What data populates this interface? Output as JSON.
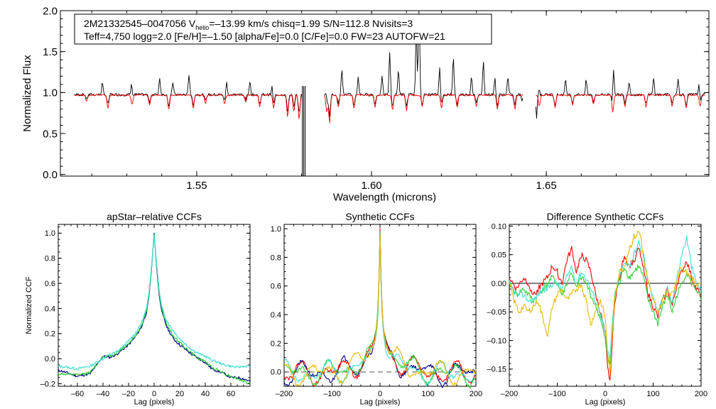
{
  "chart_data": [
    {
      "id": "spectrum",
      "type": "line",
      "title": "",
      "xlabel": "Wavelength (microns)",
      "ylabel": "Normalized Flux",
      "xlim": [
        1.511,
        1.6965
      ],
      "ylim": [
        -0.02,
        2.0
      ],
      "xticks": [
        1.55,
        1.6,
        1.65
      ],
      "xtick_labels": [
        "1.55",
        "1.60",
        "1.65"
      ],
      "yticks": [
        0.0,
        0.5,
        1.0,
        1.5,
        2.0
      ],
      "ytick_labels": [
        "0.0",
        "0.5",
        "1.0",
        "1.5",
        "2.0"
      ],
      "info_line1_parts": [
        "2M21332545–0047056  V",
        "helio",
        "=–13.99 km/s  chisq=1.99  S/N=112.8  Nvisits=3"
      ],
      "info_line2": "Teff=4,750 logg=2.0 [Fe/H]=–1.50 [alpha/Fe]=0.0 [C/Fe]=0.0 FW=23 AUTOFW=21",
      "chips": [
        [
          1.515,
          1.5803
        ],
        [
          1.5865,
          1.6433
        ],
        [
          1.647,
          1.6955
        ]
      ],
      "emission_lines": [
        [
          1.523,
          1.14
        ],
        [
          1.5314,
          1.2
        ],
        [
          1.5394,
          1.21
        ],
        [
          1.5432,
          1.15
        ],
        [
          1.5478,
          1.25
        ],
        [
          1.5585,
          1.16
        ],
        [
          1.5652,
          1.17
        ],
        [
          1.5716,
          1.12
        ],
        [
          1.5871,
          1.13
        ],
        [
          1.5915,
          1.32
        ],
        [
          1.5962,
          1.22
        ],
        [
          1.603,
          1.22
        ],
        [
          1.6052,
          1.52
        ],
        [
          1.6077,
          1.3
        ],
        [
          1.6128,
          1.79
        ],
        [
          1.6136,
          2.05
        ],
        [
          1.6195,
          1.36
        ],
        [
          1.6234,
          1.46
        ],
        [
          1.6286,
          1.23
        ],
        [
          1.632,
          1.42
        ],
        [
          1.6353,
          1.2
        ],
        [
          1.639,
          1.21
        ],
        [
          1.648,
          1.17
        ],
        [
          1.6555,
          1.18
        ],
        [
          1.6614,
          1.18
        ],
        [
          1.6692,
          1.42
        ],
        [
          1.6737,
          1.17
        ],
        [
          1.6807,
          1.2
        ],
        [
          1.6877,
          1.19
        ],
        [
          1.6937,
          1.17
        ]
      ],
      "absorption_lines": [
        [
          1.5185,
          0.93
        ],
        [
          1.5246,
          0.85
        ],
        [
          1.5315,
          0.9
        ],
        [
          1.5365,
          0.88
        ],
        [
          1.542,
          0.83
        ],
        [
          1.549,
          0.84
        ],
        [
          1.5525,
          0.9
        ],
        [
          1.558,
          0.9
        ],
        [
          1.564,
          0.92
        ],
        [
          1.568,
          0.86
        ],
        [
          1.572,
          0.84
        ],
        [
          1.576,
          0.74
        ],
        [
          1.5778,
          0.8
        ],
        [
          1.5793,
          0.72
        ],
        [
          1.5872,
          0.8
        ],
        [
          1.588,
          0.68
        ],
        [
          1.5905,
          0.86
        ],
        [
          1.595,
          0.84
        ],
        [
          1.601,
          0.86
        ],
        [
          1.606,
          0.83
        ],
        [
          1.61,
          0.82
        ],
        [
          1.6145,
          0.86
        ],
        [
          1.62,
          0.84
        ],
        [
          1.6245,
          0.85
        ],
        [
          1.63,
          0.86
        ],
        [
          1.636,
          0.83
        ],
        [
          1.641,
          0.84
        ],
        [
          1.648,
          0.87
        ],
        [
          1.6525,
          0.85
        ],
        [
          1.6575,
          0.88
        ],
        [
          1.6635,
          0.89
        ],
        [
          1.669,
          0.8
        ],
        [
          1.6725,
          0.87
        ],
        [
          1.6785,
          0.86
        ],
        [
          1.686,
          0.87
        ],
        [
          1.69,
          0.84
        ],
        [
          1.694,
          0.87
        ]
      ],
      "artifacts": [
        [
          1.6472,
          0.72
        ],
        [
          1.5855,
          0.9
        ],
        [
          1.643,
          0.93
        ]
      ],
      "gap_spikes": [
        1.5802,
        1.5806,
        1.581
      ],
      "series": [
        {
          "name": "observed",
          "color": "#000000"
        },
        {
          "name": "model",
          "color": "#ff0000"
        }
      ]
    },
    {
      "id": "apstar-ccf",
      "type": "line",
      "title": "apStar–relative CCFs",
      "xlabel": "Lag (pixels)",
      "ylabel": "Normalized CCF",
      "xlim": [
        -75,
        75
      ],
      "ylim": [
        -0.22,
        1.07
      ],
      "xticks": [
        -60,
        -40,
        -20,
        0,
        20,
        40,
        60
      ],
      "xtick_labels": [
        "–60",
        "–40",
        "–20",
        "0",
        "20",
        "40",
        "60"
      ],
      "yticks": [
        -0.2,
        0.0,
        0.2,
        0.4,
        0.6,
        0.8,
        1.0
      ],
      "ytick_labels": [
        "–0.2",
        "0.0",
        "0.2",
        "0.4",
        "0.6",
        "0.8",
        "1.0"
      ],
      "series": [
        {
          "name": "visit-1",
          "color": "#00008b",
          "x": [
            -75,
            -60,
            -50,
            -45,
            -40,
            -35,
            -30,
            -25,
            -20,
            -15,
            -10,
            -6,
            -4,
            -2,
            0,
            2,
            4,
            6,
            10,
            15,
            20,
            25,
            30,
            35,
            40,
            45,
            50,
            55,
            60,
            65,
            70,
            75
          ],
          "y": [
            -0.09,
            -0.14,
            -0.12,
            -0.05,
            0.02,
            0.01,
            0.03,
            0.07,
            0.11,
            0.17,
            0.25,
            0.37,
            0.5,
            0.72,
            1.0,
            0.72,
            0.5,
            0.37,
            0.25,
            0.16,
            0.11,
            0.07,
            0.03,
            0.0,
            -0.03,
            -0.08,
            -0.1,
            -0.12,
            -0.15,
            -0.15,
            -0.16,
            -0.18
          ]
        },
        {
          "name": "visit-2",
          "color": "#32cd32",
          "x": [
            -75,
            -60,
            -50,
            -45,
            -40,
            -35,
            -30,
            -25,
            -20,
            -15,
            -10,
            -6,
            -4,
            -2,
            0,
            2,
            4,
            6,
            10,
            15,
            20,
            25,
            30,
            35,
            40,
            45,
            50,
            55,
            60,
            65,
            70,
            75
          ],
          "y": [
            -0.12,
            -0.13,
            -0.11,
            -0.05,
            0.02,
            0.02,
            0.04,
            0.08,
            0.12,
            0.18,
            0.26,
            0.38,
            0.51,
            0.73,
            0.99,
            0.74,
            0.52,
            0.39,
            0.27,
            0.18,
            0.13,
            0.08,
            0.04,
            0.0,
            -0.02,
            -0.07,
            -0.09,
            -0.12,
            -0.14,
            -0.16,
            -0.18,
            -0.2
          ]
        },
        {
          "name": "visit-3",
          "color": "#40e0d0",
          "x": [
            -75,
            -60,
            -50,
            -45,
            -40,
            -35,
            -30,
            -25,
            -20,
            -15,
            -10,
            -6,
            -4,
            -2,
            0,
            2,
            4,
            6,
            10,
            15,
            20,
            25,
            30,
            35,
            40,
            45,
            50,
            55,
            60,
            65,
            70,
            75
          ],
          "y": [
            -0.06,
            -0.08,
            -0.06,
            -0.03,
            0.0,
            0.03,
            0.05,
            0.09,
            0.14,
            0.2,
            0.28,
            0.4,
            0.53,
            0.74,
            0.98,
            0.75,
            0.54,
            0.41,
            0.3,
            0.22,
            0.16,
            0.11,
            0.07,
            0.04,
            0.02,
            -0.01,
            -0.03,
            -0.05,
            -0.06,
            -0.07,
            -0.06,
            -0.06
          ]
        }
      ]
    },
    {
      "id": "synthetic-ccf",
      "type": "line",
      "title": "Synthetic CCFs",
      "xlabel": "Lag (pixels)",
      "ylabel": "",
      "xlim": [
        -200,
        200
      ],
      "ylim": [
        -0.1,
        1.03
      ],
      "xticks": [
        -200,
        -100,
        0,
        100,
        200
      ],
      "xtick_labels": [
        "–200",
        "–100",
        "0",
        "100",
        "200"
      ],
      "yticks": [
        0.0,
        0.2,
        0.4,
        0.6,
        0.8,
        1.0
      ],
      "ytick_labels": [
        "0.0",
        "0.2",
        "0.4",
        "0.6",
        "0.8",
        "1.0"
      ],
      "zero_line_dashed": true,
      "series": [
        {
          "name": "model-blue",
          "color": "#00008b",
          "peak": 0.99,
          "width": 0.0,
          "seed": 1
        },
        {
          "name": "model-red",
          "color": "#ff0000",
          "peak": 1.0,
          "width": 1.0,
          "seed": 2
        },
        {
          "name": "model-green",
          "color": "#32cd32",
          "peak": 0.98,
          "width": 1.5,
          "seed": 3
        },
        {
          "name": "model-cyan",
          "color": "#40e0d0",
          "peak": 0.97,
          "width": -1.0,
          "seed": 4
        },
        {
          "name": "model-gold",
          "color": "#e6b800",
          "peak": 0.96,
          "width": 2.0,
          "seed": 5
        }
      ]
    },
    {
      "id": "difference-ccf",
      "type": "line",
      "title": "Difference Synthetic CCFs",
      "xlabel": "Lag (pixels)",
      "ylabel": "",
      "xlim": [
        -200,
        200
      ],
      "ylim": [
        -0.18,
        0.103
      ],
      "xticks": [
        -200,
        -100,
        0,
        100,
        200
      ],
      "xtick_labels": [
        "–200",
        "–100",
        "0",
        "100",
        "200"
      ],
      "yticks": [
        -0.15,
        -0.1,
        -0.05,
        0.0,
        0.05,
        0.1
      ],
      "ytick_labels": [
        "–0.15",
        "–0.10",
        "–0.05",
        "0.00",
        "0.05",
        "0.10"
      ],
      "zero_line_solid": true,
      "series": [
        {
          "name": "diff-red",
          "color": "#ff0000",
          "x": [
            -200,
            -185,
            -170,
            -160,
            -150,
            -140,
            -130,
            -120,
            -110,
            -100,
            -90,
            -80,
            -70,
            -60,
            -50,
            -40,
            -30,
            -20,
            -10,
            0,
            5,
            10,
            15,
            20,
            30,
            40,
            50,
            60,
            70,
            80,
            90,
            100,
            110,
            120,
            130,
            140,
            150,
            160,
            170,
            180,
            190,
            200
          ],
          "y": [
            0.01,
            -0.01,
            0.01,
            0.0,
            -0.02,
            -0.01,
            0.0,
            0.01,
            0.03,
            0.02,
            0.0,
            0.04,
            0.06,
            0.02,
            0.05,
            0.04,
            0.02,
            -0.02,
            -0.05,
            -0.09,
            -0.15,
            -0.17,
            -0.1,
            -0.03,
            0.01,
            0.05,
            0.03,
            0.04,
            0.06,
            0.03,
            -0.02,
            -0.04,
            -0.06,
            -0.03,
            -0.01,
            -0.04,
            0.0,
            0.02,
            0.04,
            0.01,
            -0.01,
            -0.02
          ]
        },
        {
          "name": "diff-green",
          "color": "#32cd32",
          "x": [
            -200,
            -185,
            -170,
            -160,
            -150,
            -140,
            -130,
            -120,
            -110,
            -100,
            -90,
            -80,
            -70,
            -60,
            -50,
            -40,
            -30,
            -20,
            -10,
            0,
            5,
            10,
            15,
            20,
            30,
            40,
            50,
            60,
            70,
            80,
            90,
            100,
            110,
            120,
            130,
            140,
            150,
            160,
            170,
            180,
            190,
            200
          ],
          "y": [
            0.0,
            -0.02,
            -0.01,
            -0.02,
            -0.03,
            -0.02,
            -0.01,
            0.0,
            0.01,
            0.0,
            -0.02,
            0.0,
            0.02,
            -0.01,
            0.01,
            0.0,
            -0.02,
            -0.04,
            -0.06,
            -0.1,
            -0.13,
            -0.14,
            -0.08,
            -0.02,
            0.0,
            0.03,
            0.01,
            0.02,
            0.03,
            0.01,
            -0.03,
            -0.05,
            -0.07,
            -0.04,
            -0.02,
            -0.05,
            -0.02,
            0.0,
            0.02,
            0.0,
            -0.01,
            -0.03
          ]
        },
        {
          "name": "diff-cyan",
          "color": "#40e0d0",
          "x": [
            -200,
            -185,
            -170,
            -160,
            -150,
            -140,
            -130,
            -120,
            -110,
            -100,
            -90,
            -80,
            -70,
            -60,
            -50,
            -40,
            -30,
            -20,
            -10,
            0,
            5,
            10,
            15,
            20,
            30,
            40,
            50,
            60,
            70,
            80,
            90,
            100,
            110,
            120,
            130,
            140,
            150,
            160,
            170,
            180,
            190,
            200
          ],
          "y": [
            0.0,
            -0.02,
            -0.02,
            -0.03,
            -0.03,
            -0.02,
            -0.01,
            -0.01,
            0.0,
            0.0,
            -0.01,
            0.01,
            0.03,
            0.0,
            0.02,
            0.01,
            -0.01,
            -0.03,
            -0.05,
            -0.09,
            -0.12,
            -0.13,
            -0.07,
            -0.02,
            0.01,
            0.04,
            0.03,
            0.05,
            0.07,
            0.05,
            0.0,
            -0.02,
            -0.05,
            -0.03,
            -0.01,
            -0.03,
            0.01,
            0.05,
            0.08,
            0.03,
            0.0,
            -0.01
          ]
        },
        {
          "name": "diff-gold",
          "color": "#e6b800",
          "x": [
            -200,
            -190,
            -180,
            -170,
            -160,
            -150,
            -140,
            -130,
            -120,
            -110,
            -100,
            -90,
            -80,
            -70,
            -60,
            -50,
            -40,
            -30,
            -20,
            -10,
            0,
            5,
            10,
            15,
            20,
            30,
            40,
            50,
            60,
            70,
            75,
            80,
            90,
            100,
            110,
            120,
            130,
            140,
            150,
            160,
            170,
            180,
            190,
            200
          ],
          "y": [
            0.0,
            -0.03,
            -0.05,
            -0.04,
            -0.05,
            -0.04,
            -0.03,
            -0.06,
            -0.09,
            -0.04,
            -0.02,
            -0.01,
            -0.03,
            -0.02,
            -0.01,
            0.0,
            -0.03,
            -0.07,
            -0.05,
            -0.03,
            -0.06,
            -0.12,
            -0.16,
            -0.09,
            -0.02,
            0.02,
            0.03,
            0.06,
            0.08,
            0.09,
            0.08,
            0.04,
            0.0,
            -0.03,
            -0.05,
            -0.03,
            -0.01,
            -0.02,
            0.01,
            0.03,
            0.02,
            0.01,
            0.0,
            0.0
          ]
        }
      ]
    }
  ]
}
